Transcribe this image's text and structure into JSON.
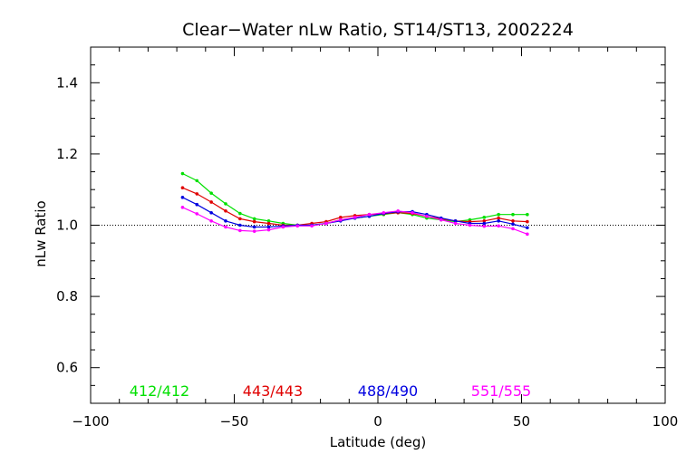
{
  "chart_data": {
    "type": "line",
    "title": "Clear−Water nLw Ratio, ST14/ST13, 2002224",
    "xlabel": "Latitude (deg)",
    "ylabel": "nLw Ratio",
    "xlim": [
      -100,
      100
    ],
    "ylim": [
      0.5,
      1.5
    ],
    "x_ticks": [
      -100,
      -50,
      0,
      50,
      100
    ],
    "x_tick_labels": [
      "−100",
      "−50",
      "0",
      "50",
      "100"
    ],
    "y_ticks": [
      0.6,
      0.8,
      1.0,
      1.2,
      1.4
    ],
    "y_tick_labels": [
      "0.6",
      "0.8",
      "1.0",
      "1.2",
      "1.4"
    ],
    "reference_line": {
      "y": 1.0,
      "style": "dotted"
    },
    "x": [
      -68,
      -63,
      -58,
      -53,
      -48,
      -43,
      -38,
      -33,
      -28,
      -23,
      -18,
      -13,
      -8,
      -3,
      2,
      7,
      12,
      17,
      22,
      27,
      32,
      37,
      42,
      47,
      52
    ],
    "series": [
      {
        "name": "412/412",
        "color": "#00e000",
        "values": [
          1.145,
          1.125,
          1.09,
          1.06,
          1.033,
          1.018,
          1.012,
          1.005,
          1.0,
          1.0,
          1.005,
          1.015,
          1.02,
          1.025,
          1.03,
          1.035,
          1.03,
          1.02,
          1.015,
          1.01,
          1.015,
          1.022,
          1.03,
          1.03,
          1.03
        ]
      },
      {
        "name": "443/443",
        "color": "#e00000",
        "values": [
          1.105,
          1.088,
          1.065,
          1.04,
          1.018,
          1.01,
          1.005,
          1.0,
          1.0,
          1.005,
          1.01,
          1.022,
          1.027,
          1.03,
          1.032,
          1.035,
          1.033,
          1.025,
          1.018,
          1.012,
          1.01,
          1.012,
          1.02,
          1.012,
          1.01
        ]
      },
      {
        "name": "488/490",
        "color": "#0000e0",
        "values": [
          1.078,
          1.058,
          1.035,
          1.012,
          1.0,
          0.995,
          0.995,
          0.998,
          1.0,
          1.0,
          1.005,
          1.012,
          1.02,
          1.025,
          1.033,
          1.038,
          1.038,
          1.03,
          1.02,
          1.012,
          1.005,
          1.005,
          1.012,
          1.003,
          0.993
        ]
      },
      {
        "name": "551/555",
        "color": "#ff00ff",
        "values": [
          1.05,
          1.032,
          1.012,
          0.995,
          0.985,
          0.983,
          0.987,
          0.995,
          0.998,
          0.998,
          1.005,
          1.015,
          1.022,
          1.03,
          1.035,
          1.04,
          1.035,
          1.025,
          1.015,
          1.005,
          1.0,
          0.997,
          0.998,
          0.99,
          0.975
        ]
      }
    ]
  }
}
